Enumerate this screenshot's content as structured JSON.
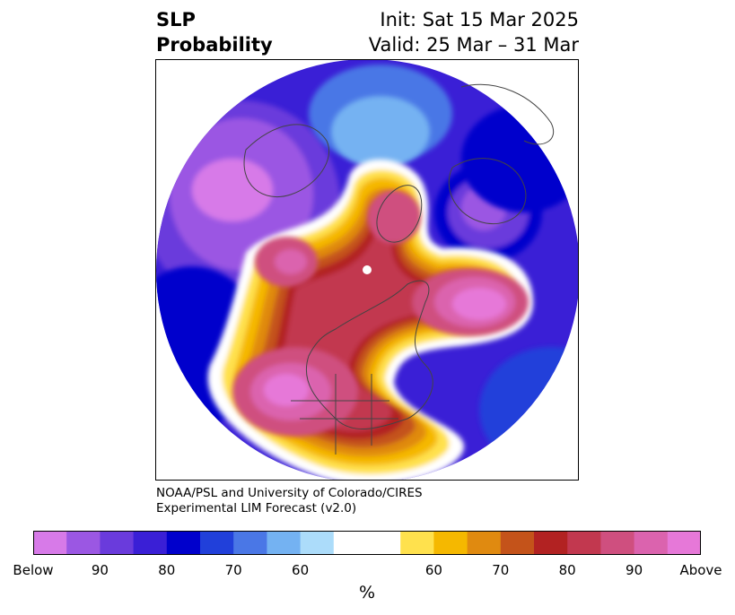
{
  "title": {
    "left_line1": "SLP",
    "left_line2": "Probability",
    "right_line1": "Init: Sat 15 Mar 2025",
    "right_line2": "Valid: 25 Mar – 31 Mar"
  },
  "credit": {
    "line1": "NOAA/PSL and University of Colorado/CIRES",
    "line2": "Experimental LIM Forecast (v2.0)"
  },
  "colorbar": {
    "unit": "%",
    "colors": [
      "#d77ae8",
      "#9b57e3",
      "#6a3bdc",
      "#3a1fd6",
      "#0000cc",
      "#2140da",
      "#4a77e6",
      "#74b2f2",
      "#acdcfa",
      "#ffffff",
      "#ffffff",
      "#ffe14d",
      "#f5b800",
      "#e08a10",
      "#c4531a",
      "#b22222",
      "#c2384f",
      "#cf4f7f",
      "#db63ae",
      "#e678d8"
    ],
    "ticks": [
      {
        "label": "Below",
        "index": 0
      },
      {
        "label": "90",
        "index": 2
      },
      {
        "label": "80",
        "index": 4
      },
      {
        "label": "70",
        "index": 6
      },
      {
        "label": "60",
        "index": 8
      },
      {
        "label": "60",
        "index": 12
      },
      {
        "label": "70",
        "index": 14
      },
      {
        "label": "80",
        "index": 16
      },
      {
        "label": "90",
        "index": 18
      },
      {
        "label": "Above",
        "index": 20
      }
    ]
  },
  "map": {
    "projection": "north-polar-stereographic",
    "pole_marker_color": "#ffffff",
    "coastline_color": "#444444"
  }
}
